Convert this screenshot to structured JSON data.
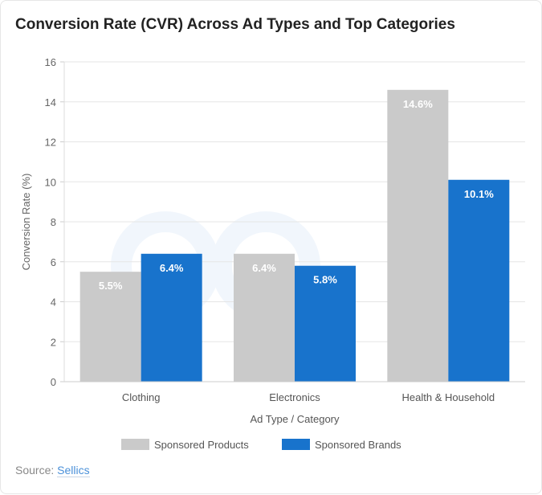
{
  "chart_data": {
    "type": "bar",
    "title": "Conversion Rate (CVR) Across Ad Types and Top Categories",
    "xlabel": "Ad Type / Category",
    "ylabel": "Conversion Rate (%)",
    "ylim": [
      0,
      16
    ],
    "yticks": [
      0,
      2,
      4,
      6,
      8,
      10,
      12,
      14,
      16
    ],
    "grid": true,
    "legend_placement": "bottom",
    "categories": [
      "Clothing",
      "Electronics",
      "Health & Household"
    ],
    "series": [
      {
        "name": "Sponsored Products",
        "color": "#cacaca",
        "values": [
          5.5,
          6.4,
          14.6
        ],
        "labels": [
          "5.5%",
          "6.4%",
          "14.6%"
        ]
      },
      {
        "name": "Sponsored Brands",
        "color": "#1873cc",
        "values": [
          6.4,
          5.8,
          10.1
        ],
        "labels": [
          "6.4%",
          "5.8%",
          "10.1%"
        ]
      }
    ]
  },
  "watermark": "sellics",
  "source": {
    "label": "Source:",
    "link_text": "Sellics"
  }
}
